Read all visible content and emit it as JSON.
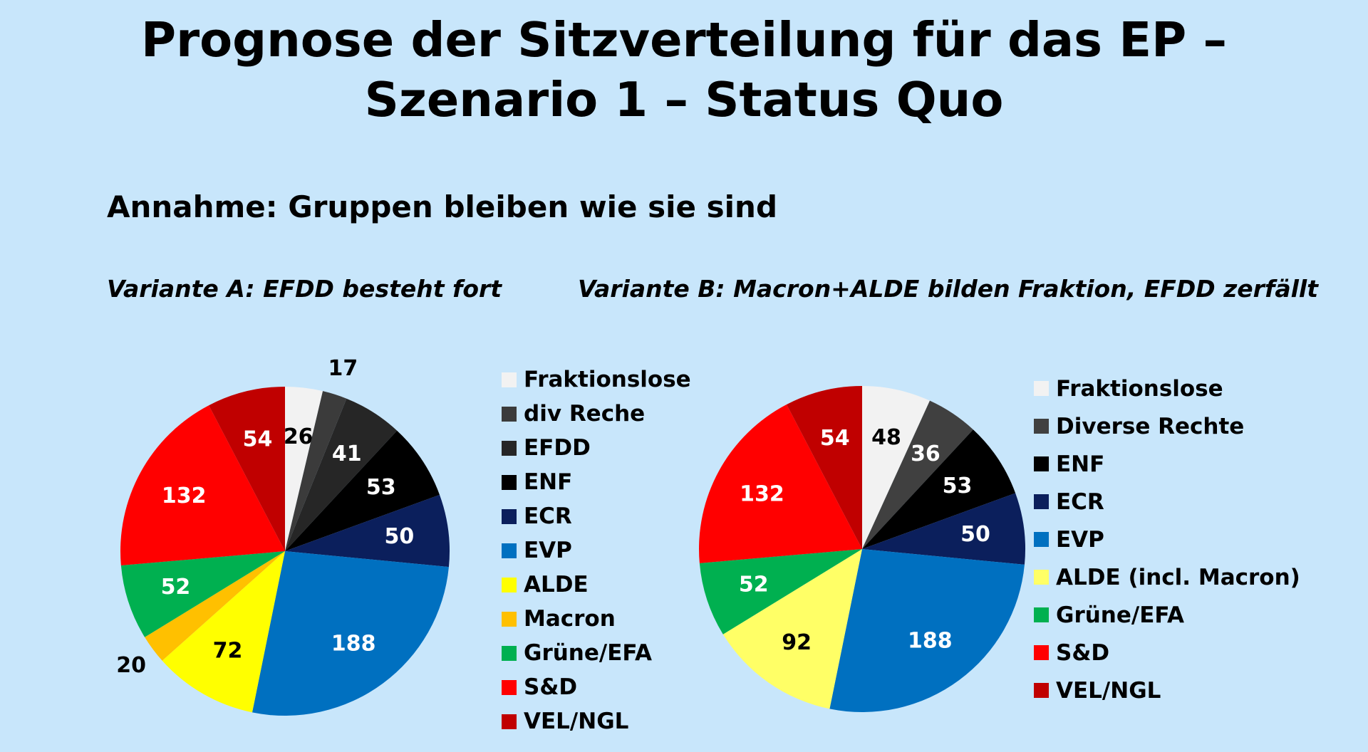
{
  "header": {
    "title_line1": "Prognose der Sitzverteilung für das EP –",
    "title_line2": "Szenario 1 – Status Quo",
    "subtitle": "Annahme: Gruppen bleiben wie sie sind"
  },
  "chart_data": [
    {
      "type": "pie",
      "title": "Variante A: EFDD besteht fort",
      "start": "12 o'clock, clockwise",
      "slices": [
        {
          "label": "Fraktionslose",
          "value": 26,
          "color": "#f2f2f2"
        },
        {
          "label": "div Reche",
          "value": 17,
          "color": "#3b3b3b"
        },
        {
          "label": "EFDD",
          "value": 41,
          "color": "#262626"
        },
        {
          "label": "ENF",
          "value": 53,
          "color": "#000000"
        },
        {
          "label": "ECR",
          "value": 50,
          "color": "#0b1f5c"
        },
        {
          "label": "EVP",
          "value": 188,
          "color": "#0070c0"
        },
        {
          "label": "ALDE",
          "value": 72,
          "color": "#ffff00"
        },
        {
          "label": "Macron",
          "value": 20,
          "color": "#ffc000"
        },
        {
          "label": "Grüne/EFA",
          "value": 52,
          "color": "#00b050"
        },
        {
          "label": "S&D",
          "value": 132,
          "color": "#ff0000"
        },
        {
          "label": "VEL/NGL",
          "value": 54,
          "color": "#c00000"
        }
      ]
    },
    {
      "type": "pie",
      "title": "Variante B: Macron+ALDE bilden Fraktion, EFDD zerfällt",
      "start": "12 o'clock, clockwise",
      "slices": [
        {
          "label": "Fraktionslose",
          "value": 48,
          "color": "#f2f2f2"
        },
        {
          "label": "Diverse Rechte",
          "value": 36,
          "color": "#404040"
        },
        {
          "label": "ENF",
          "value": 53,
          "color": "#000000"
        },
        {
          "label": "ECR",
          "value": 50,
          "color": "#0b1f5c"
        },
        {
          "label": "EVP",
          "value": 188,
          "color": "#0070c0"
        },
        {
          "label": "ALDE (incl. Macron)",
          "value": 92,
          "color": "#ffff66"
        },
        {
          "label": "Grüne/EFA",
          "value": 52,
          "color": "#00b050"
        },
        {
          "label": "S&D",
          "value": 132,
          "color": "#ff0000"
        },
        {
          "label": "VEL/NGL",
          "value": 54,
          "color": "#c00000"
        }
      ]
    }
  ]
}
